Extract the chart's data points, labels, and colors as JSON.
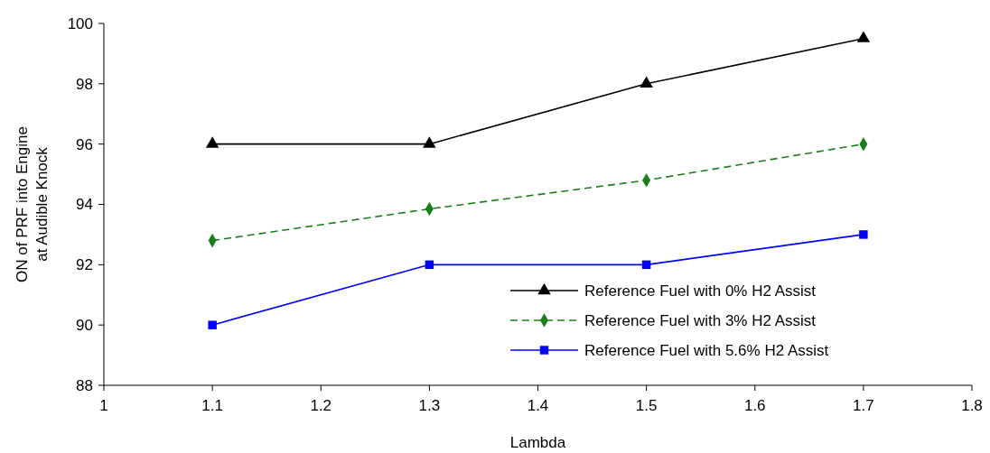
{
  "chart_data": {
    "type": "line",
    "xlabel": "Lambda",
    "ylabel": "ON of PRF into Engine at Audible Knock",
    "x": [
      1.1,
      1.3,
      1.5,
      1.7
    ],
    "xlim": [
      1,
      1.8
    ],
    "xticks": [
      1,
      1.1,
      1.2,
      1.3,
      1.4,
      1.5,
      1.6,
      1.7,
      1.8
    ],
    "ylim": [
      88,
      100
    ],
    "yticks": [
      88,
      90,
      92,
      94,
      96,
      98,
      100
    ],
    "grid": false,
    "legend": "bottom right",
    "series": [
      {
        "name": "Reference Fuel with 0% H2 Assist",
        "color": "#000000",
        "marker": "triangle",
        "line_style": "solid",
        "values": [
          96,
          96,
          98,
          99.5
        ]
      },
      {
        "name": "Reference Fuel with 3% H2 Assist",
        "color": "#1a7f1a",
        "marker": "diamond",
        "line_style": "dashed",
        "values": [
          92.8,
          93.85,
          94.8,
          96
        ]
      },
      {
        "name": "Reference Fuel with 5.6% H2 Assist",
        "color": "#0000ff",
        "marker": "square",
        "line_style": "solid",
        "values": [
          90,
          92,
          92,
          93
        ]
      }
    ]
  }
}
